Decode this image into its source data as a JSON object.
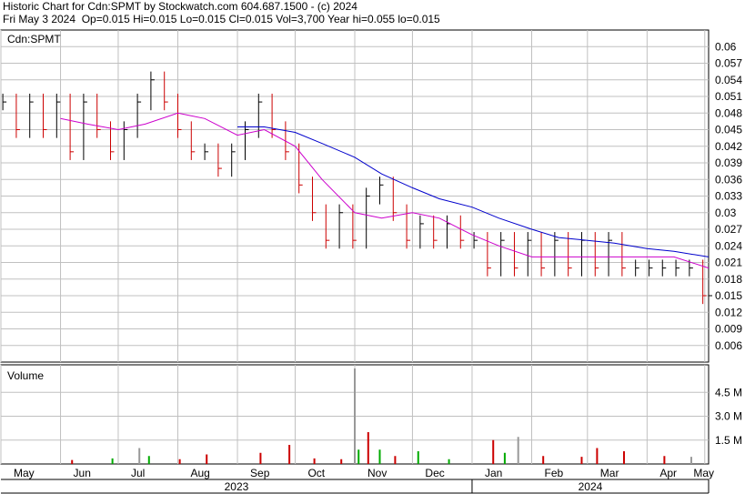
{
  "header": {
    "title": "Historic Chart for Cdn:SPMT by Stockwatch.com 604.687.1500 - (c) 2024",
    "date": "Fri May  3 2024",
    "stats": [
      {
        "label": "Op",
        "value": "0.015"
      },
      {
        "label": "Hi",
        "value": "0.015"
      },
      {
        "label": "Lo",
        "value": "0.015"
      },
      {
        "label": "Cl",
        "value": "0.015"
      },
      {
        "label": "Vol",
        "value": "3,700"
      },
      {
        "label": "Year hi",
        "value": "0.055"
      },
      {
        "label": "lo",
        "value": "0.015"
      }
    ],
    "stats_line": "Op=0.015  Hi=0.015  Lo=0.015  Cl=0.015  Vol=3,700  Year hi=0.055  lo=0.015"
  },
  "chart_data": {
    "type": "line",
    "symbol_label": "Cdn:SPMT",
    "volume_label": "Volume",
    "price_axis": {
      "ylim": [
        0.003,
        0.063
      ],
      "ticks": [
        "0.06",
        "0.057",
        "0.054",
        "0.051",
        "0.048",
        "0.045",
        "0.042",
        "0.039",
        "0.036",
        "0.033",
        "0.03",
        "0.027",
        "0.024",
        "0.021",
        "0.018",
        "0.015",
        "0.012",
        "0.009",
        "0.006"
      ],
      "tick_values": [
        0.06,
        0.057,
        0.054,
        0.051,
        0.048,
        0.045,
        0.042,
        0.039,
        0.036,
        0.033,
        0.03,
        0.027,
        0.024,
        0.021,
        0.018,
        0.015,
        0.012,
        0.009,
        0.006
      ]
    },
    "volume_axis": {
      "ylim": [
        0,
        6000000
      ],
      "ticks": [
        "4.5 M",
        "3.0 M",
        "1.5 M"
      ],
      "tick_values": [
        4500000,
        3000000,
        1500000
      ]
    },
    "x_axis": {
      "range": [
        "2023-05-01",
        "2024-05-03"
      ],
      "months": [
        {
          "label": "May",
          "date": "2023-05-01"
        },
        {
          "label": "Jun",
          "date": "2023-06-01"
        },
        {
          "label": "Jul",
          "date": "2023-07-01"
        },
        {
          "label": "Aug",
          "date": "2023-08-01"
        },
        {
          "label": "Sep",
          "date": "2023-09-01"
        },
        {
          "label": "Oct",
          "date": "2023-10-01"
        },
        {
          "label": "Nov",
          "date": "2023-11-01"
        },
        {
          "label": "Dec",
          "date": "2023-12-01"
        },
        {
          "label": "Jan",
          "date": "2024-01-01"
        },
        {
          "label": "Feb",
          "date": "2024-02-01"
        },
        {
          "label": "Mar",
          "date": "2024-03-01"
        },
        {
          "label": "Apr",
          "date": "2024-04-01"
        },
        {
          "label": "May",
          "date": "2024-05-01"
        }
      ],
      "years": [
        {
          "label": "2023",
          "start": "2023-05-01",
          "end": "2024-01-01"
        },
        {
          "label": "2024",
          "start": "2024-01-01",
          "end": "2024-05-03"
        }
      ]
    },
    "grid": true,
    "colors": {
      "price_up": "#000000",
      "price_down": "#cc0000",
      "ma_short": "#cc00cc",
      "ma_long": "#0000cc",
      "vol_up": "#00aa00",
      "vol_down": "#cc0000",
      "vol_neutral": "#999999",
      "grid": "#c0c0c0"
    },
    "series": [
      {
        "type": "price_ohlc",
        "points": [
          {
            "x": "2023-05-02",
            "y": 0.05
          },
          {
            "x": "2023-05-09",
            "y": 0.045
          },
          {
            "x": "2023-05-16",
            "y": 0.05
          },
          {
            "x": "2023-05-23",
            "y": 0.045
          },
          {
            "x": "2023-05-30",
            "y": 0.05
          },
          {
            "x": "2023-06-06",
            "y": 0.041
          },
          {
            "x": "2023-06-13",
            "y": 0.05
          },
          {
            "x": "2023-06-20",
            "y": 0.045
          },
          {
            "x": "2023-06-27",
            "y": 0.041
          },
          {
            "x": "2023-07-04",
            "y": 0.045
          },
          {
            "x": "2023-07-11",
            "y": 0.05
          },
          {
            "x": "2023-07-18",
            "y": 0.054
          },
          {
            "x": "2023-07-25",
            "y": 0.05
          },
          {
            "x": "2023-08-01",
            "y": 0.045
          },
          {
            "x": "2023-08-08",
            "y": 0.041
          },
          {
            "x": "2023-08-15",
            "y": 0.041
          },
          {
            "x": "2023-08-22",
            "y": 0.038
          },
          {
            "x": "2023-08-29",
            "y": 0.041
          },
          {
            "x": "2023-09-05",
            "y": 0.045
          },
          {
            "x": "2023-09-12",
            "y": 0.05
          },
          {
            "x": "2023-09-19",
            "y": 0.045
          },
          {
            "x": "2023-09-26",
            "y": 0.041
          },
          {
            "x": "2023-10-03",
            "y": 0.035
          },
          {
            "x": "2023-10-10",
            "y": 0.03
          },
          {
            "x": "2023-10-17",
            "y": 0.025
          },
          {
            "x": "2023-10-24",
            "y": 0.03
          },
          {
            "x": "2023-10-31",
            "y": 0.025
          },
          {
            "x": "2023-11-07",
            "y": 0.033
          },
          {
            "x": "2023-11-14",
            "y": 0.035
          },
          {
            "x": "2023-11-21",
            "y": 0.03
          },
          {
            "x": "2023-11-28",
            "y": 0.025
          },
          {
            "x": "2023-12-05",
            "y": 0.028
          },
          {
            "x": "2023-12-12",
            "y": 0.025
          },
          {
            "x": "2023-12-19",
            "y": 0.028
          },
          {
            "x": "2023-12-26",
            "y": 0.025
          },
          {
            "x": "2024-01-02",
            "y": 0.025
          },
          {
            "x": "2024-01-09",
            "y": 0.02
          },
          {
            "x": "2024-01-16",
            "y": 0.025
          },
          {
            "x": "2024-01-23",
            "y": 0.02
          },
          {
            "x": "2024-01-30",
            "y": 0.025
          },
          {
            "x": "2024-02-06",
            "y": 0.02
          },
          {
            "x": "2024-02-13",
            "y": 0.025
          },
          {
            "x": "2024-02-20",
            "y": 0.02
          },
          {
            "x": "2024-02-27",
            "y": 0.025
          },
          {
            "x": "2024-03-05",
            "y": 0.02
          },
          {
            "x": "2024-03-12",
            "y": 0.025
          },
          {
            "x": "2024-03-19",
            "y": 0.02
          },
          {
            "x": "2024-03-26",
            "y": 0.02
          },
          {
            "x": "2024-04-02",
            "y": 0.02
          },
          {
            "x": "2024-04-09",
            "y": 0.02
          },
          {
            "x": "2024-04-16",
            "y": 0.02
          },
          {
            "x": "2024-04-23",
            "y": 0.02
          },
          {
            "x": "2024-04-30",
            "y": 0.015
          },
          {
            "x": "2024-05-03",
            "y": 0.015
          }
        ]
      },
      {
        "type": "ma_short",
        "points": [
          {
            "x": "2023-06-01",
            "y": 0.047
          },
          {
            "x": "2023-06-15",
            "y": 0.046
          },
          {
            "x": "2023-07-01",
            "y": 0.045
          },
          {
            "x": "2023-07-15",
            "y": 0.046
          },
          {
            "x": "2023-08-01",
            "y": 0.048
          },
          {
            "x": "2023-08-15",
            "y": 0.047
          },
          {
            "x": "2023-09-01",
            "y": 0.044
          },
          {
            "x": "2023-09-15",
            "y": 0.045
          },
          {
            "x": "2023-10-01",
            "y": 0.042
          },
          {
            "x": "2023-10-15",
            "y": 0.036
          },
          {
            "x": "2023-11-01",
            "y": 0.03
          },
          {
            "x": "2023-11-15",
            "y": 0.029
          },
          {
            "x": "2023-12-01",
            "y": 0.03
          },
          {
            "x": "2023-12-15",
            "y": 0.029
          },
          {
            "x": "2024-01-01",
            "y": 0.026
          },
          {
            "x": "2024-01-15",
            "y": 0.024
          },
          {
            "x": "2024-02-01",
            "y": 0.022
          },
          {
            "x": "2024-02-15",
            "y": 0.022
          },
          {
            "x": "2024-03-01",
            "y": 0.022
          },
          {
            "x": "2024-03-15",
            "y": 0.022
          },
          {
            "x": "2024-04-01",
            "y": 0.022
          },
          {
            "x": "2024-04-15",
            "y": 0.022
          },
          {
            "x": "2024-05-03",
            "y": 0.02
          }
        ]
      },
      {
        "type": "ma_long",
        "points": [
          {
            "x": "2023-09-01",
            "y": 0.0455
          },
          {
            "x": "2023-09-15",
            "y": 0.0455
          },
          {
            "x": "2023-10-01",
            "y": 0.0445
          },
          {
            "x": "2023-10-15",
            "y": 0.0425
          },
          {
            "x": "2023-11-01",
            "y": 0.04
          },
          {
            "x": "2023-11-15",
            "y": 0.037
          },
          {
            "x": "2023-12-01",
            "y": 0.0345
          },
          {
            "x": "2023-12-15",
            "y": 0.0325
          },
          {
            "x": "2024-01-01",
            "y": 0.031
          },
          {
            "x": "2024-01-15",
            "y": 0.029
          },
          {
            "x": "2024-02-01",
            "y": 0.027
          },
          {
            "x": "2024-02-15",
            "y": 0.0255
          },
          {
            "x": "2024-03-01",
            "y": 0.025
          },
          {
            "x": "2024-03-15",
            "y": 0.0245
          },
          {
            "x": "2024-04-01",
            "y": 0.0235
          },
          {
            "x": "2024-04-15",
            "y": 0.023
          },
          {
            "x": "2024-05-03",
            "y": 0.022
          }
        ]
      },
      {
        "type": "volume",
        "points": [
          {
            "x": "2023-06-07",
            "y": 250000,
            "dir": "down"
          },
          {
            "x": "2023-06-28",
            "y": 350000,
            "dir": "up"
          },
          {
            "x": "2023-07-12",
            "y": 1000000,
            "dir": "neutral"
          },
          {
            "x": "2023-07-17",
            "y": 500000,
            "dir": "up"
          },
          {
            "x": "2023-08-02",
            "y": 300000,
            "dir": "down"
          },
          {
            "x": "2023-08-16",
            "y": 600000,
            "dir": "down"
          },
          {
            "x": "2023-09-13",
            "y": 700000,
            "dir": "down"
          },
          {
            "x": "2023-09-28",
            "y": 1200000,
            "dir": "down"
          },
          {
            "x": "2023-10-11",
            "y": 350000,
            "dir": "down"
          },
          {
            "x": "2023-10-25",
            "y": 300000,
            "dir": "down"
          },
          {
            "x": "2023-11-01",
            "y": 6000000,
            "dir": "neutral"
          },
          {
            "x": "2023-11-03",
            "y": 900000,
            "dir": "up"
          },
          {
            "x": "2023-11-08",
            "y": 2000000,
            "dir": "down"
          },
          {
            "x": "2023-11-14",
            "y": 900000,
            "dir": "up"
          },
          {
            "x": "2023-11-22",
            "y": 500000,
            "dir": "down"
          },
          {
            "x": "2023-12-04",
            "y": 800000,
            "dir": "up"
          },
          {
            "x": "2023-12-20",
            "y": 300000,
            "dir": "up"
          },
          {
            "x": "2024-01-12",
            "y": 1500000,
            "dir": "down"
          },
          {
            "x": "2024-01-18",
            "y": 700000,
            "dir": "up"
          },
          {
            "x": "2024-01-25",
            "y": 1700000,
            "dir": "neutral"
          },
          {
            "x": "2024-02-07",
            "y": 500000,
            "dir": "down"
          },
          {
            "x": "2024-02-27",
            "y": 450000,
            "dir": "down"
          },
          {
            "x": "2024-03-06",
            "y": 1000000,
            "dir": "down"
          },
          {
            "x": "2024-03-20",
            "y": 800000,
            "dir": "down"
          },
          {
            "x": "2024-04-10",
            "y": 500000,
            "dir": "down"
          },
          {
            "x": "2024-04-24",
            "y": 450000,
            "dir": "neutral"
          }
        ]
      }
    ]
  }
}
